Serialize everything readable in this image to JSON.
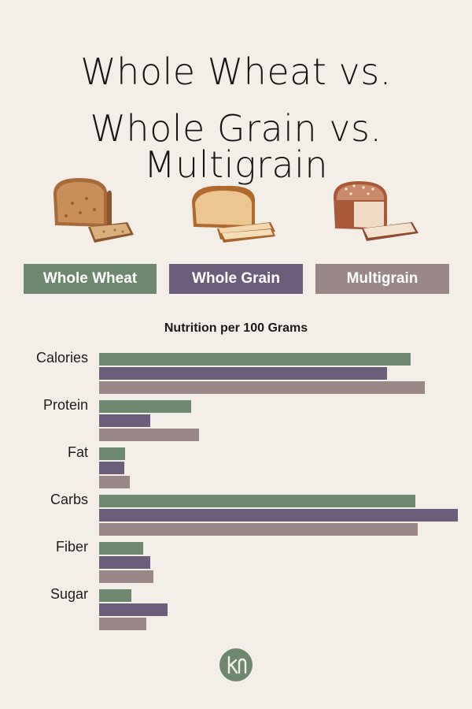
{
  "title": {
    "line1": "Whole Wheat vs.",
    "line2": "Whole Grain vs. Multigrain"
  },
  "colors": {
    "whole_wheat": "#6e8870",
    "whole_grain": "#6a5e7b",
    "multigrain": "#9a8888",
    "background": "#f3efe8"
  },
  "icons": [
    "whole-wheat-bread-icon",
    "whole-grain-bread-icon",
    "multigrain-bread-icon",
    "brand-logo-icon"
  ],
  "chart_data": {
    "type": "bar",
    "orientation": "horizontal",
    "title": "Nutrition per 100 Grams",
    "categories": [
      "Calories",
      "Protein",
      "Fat",
      "Carbs",
      "Fiber",
      "Sugar"
    ],
    "series": [
      {
        "name": "Whole Wheat",
        "values": [
          252,
          12.5,
          3.5,
          43.0,
          6.0,
          4.4
        ]
      },
      {
        "name": "Whole Grain",
        "values": [
          233,
          7.0,
          3.4,
          48.8,
          7.0,
          9.3
        ]
      },
      {
        "name": "Multigrain",
        "values": [
          263,
          13.6,
          4.2,
          43.3,
          7.4,
          6.4
        ]
      }
    ],
    "value_axis": {
      "min": 0,
      "calories_max": 290,
      "grams_max": 48.8,
      "shown": false
    },
    "legend_position": "top",
    "grid": false
  }
}
